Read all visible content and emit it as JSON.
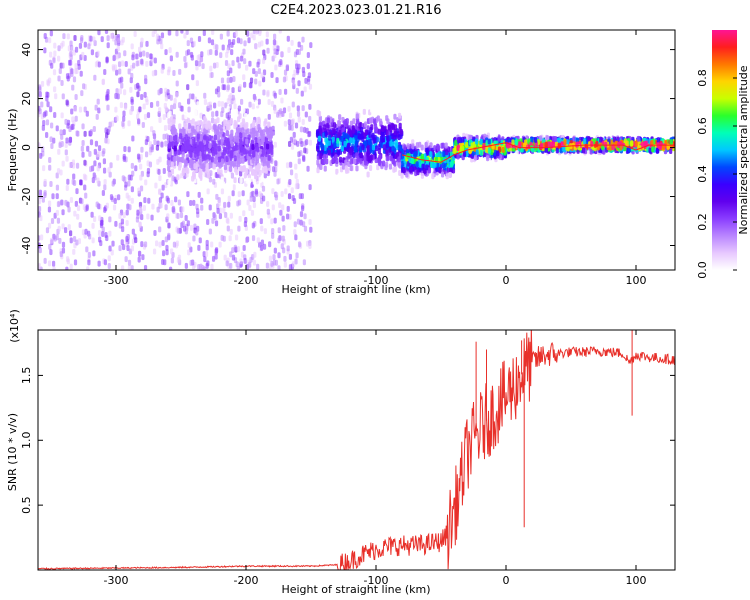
{
  "title": "C2E4.2023.023.01.21.R16",
  "colors": {
    "snr_line": "#e8302a",
    "colormap": [
      "#ffffff",
      "#e7c8ff",
      "#b985ff",
      "#8a3dff",
      "#6000ee",
      "#3a00ff",
      "#0047ff",
      "#00c8ff",
      "#00ffb8",
      "#2bff2b",
      "#c8ff00",
      "#ffd400",
      "#ff7800",
      "#ff1e1e",
      "#ff1493"
    ]
  },
  "chart_data": [
    {
      "type": "heatmap",
      "xlabel": "Height of straight line (km)",
      "ylabel": "Frequency (Hz)",
      "xlim": [
        -360,
        130
      ],
      "ylim": [
        -50,
        48
      ],
      "xticks": [
        -300,
        -200,
        -100,
        0,
        100
      ],
      "xtick_labels": [
        "-300",
        "-200",
        "-100",
        "0",
        "100"
      ],
      "yticks": [
        -40,
        -20,
        0,
        20,
        40
      ],
      "ytick_labels": [
        "-40",
        "-20",
        "0",
        "20",
        "40"
      ],
      "colorbar": {
        "label": "Normalized spectral amplitude",
        "range": [
          0.0,
          1.0
        ],
        "ticks": [
          0.0,
          0.2,
          0.4,
          0.6,
          0.8
        ],
        "tick_labels": [
          "0.0",
          "0.2",
          "0.4",
          "0.6",
          "0.8"
        ]
      },
      "regions": [
        {
          "x": [
            -360,
            -150
          ],
          "freq_spread": [
            -50,
            48
          ],
          "amplitude": 0.15,
          "description": "diffuse low-amplitude noise"
        },
        {
          "x": [
            -260,
            -180
          ],
          "freq_center": 0,
          "freq_spread": [
            -12,
            12
          ],
          "amplitude": 0.2
        },
        {
          "x": [
            -145,
            -80
          ],
          "freq_center": 2,
          "freq_spread": [
            -8,
            14
          ],
          "amplitude": 0.4
        },
        {
          "x": [
            -80,
            -40
          ],
          "freq_center": -5,
          "freq_spread": [
            -10,
            2
          ],
          "amplitude": 0.55
        },
        {
          "x": [
            -40,
            0
          ],
          "freq_center": 0,
          "freq_spread": [
            -4,
            4
          ],
          "amplitude": 0.75
        },
        {
          "x": [
            0,
            130
          ],
          "freq_center": 1,
          "freq_spread": [
            -2,
            3
          ],
          "amplitude": 0.95
        }
      ],
      "ridge": [
        [
          -80,
          -3
        ],
        [
          -65,
          -5
        ],
        [
          -50,
          -6
        ],
        [
          -40,
          -3
        ],
        [
          -30,
          -1
        ],
        [
          -20,
          0
        ],
        [
          -10,
          1
        ],
        [
          0,
          2
        ],
        [
          10,
          0
        ],
        [
          30,
          0
        ],
        [
          60,
          1
        ],
        [
          90,
          1
        ],
        [
          100,
          -1
        ],
        [
          110,
          1
        ],
        [
          130,
          1
        ]
      ]
    },
    {
      "type": "line",
      "xlabel": "Height of straight line (km)",
      "ylabel": "SNR (10 * v/v)",
      "scale_label": "(x10⁴)",
      "xlim": [
        -360,
        130
      ],
      "ylim": [
        0,
        1.85
      ],
      "xticks": [
        -300,
        -200,
        -100,
        0,
        100
      ],
      "xtick_labels": [
        "-300",
        "-200",
        "-100",
        "0",
        "100"
      ],
      "yticks": [
        0.5,
        1.0,
        1.5
      ],
      "ytick_labels": [
        "0.5",
        "1.0",
        "1.5"
      ],
      "series": [
        {
          "x": [
            -360,
            -300,
            -250,
            -200,
            -150,
            -130,
            -120,
            -110,
            -100,
            -90,
            -80,
            -70,
            -60,
            -50,
            -45,
            -40,
            -35,
            -30,
            -25,
            -20,
            -15,
            -10,
            -5,
            0,
            5,
            10,
            15,
            20,
            25,
            30,
            40,
            50,
            60,
            70,
            80,
            90,
            95,
            100,
            110,
            120,
            130
          ],
          "y": [
            0.01,
            0.015,
            0.02,
            0.03,
            0.03,
            0.04,
            0.07,
            0.12,
            0.16,
            0.18,
            0.19,
            0.19,
            0.2,
            0.22,
            0.28,
            0.45,
            0.65,
            0.9,
            1.0,
            1.08,
            1.15,
            1.2,
            1.28,
            1.33,
            1.4,
            1.48,
            1.55,
            1.6,
            1.63,
            1.66,
            1.67,
            1.68,
            1.68,
            1.69,
            1.68,
            1.67,
            1.6,
            1.66,
            1.64,
            1.63,
            1.62
          ]
        }
      ],
      "spikes": [
        [
          -23,
          1.76
        ],
        [
          -15,
          1.7
        ],
        [
          12,
          1.77
        ],
        [
          14,
          0.33
        ],
        [
          97,
          1.85
        ],
        [
          97,
          1.19
        ]
      ]
    }
  ]
}
